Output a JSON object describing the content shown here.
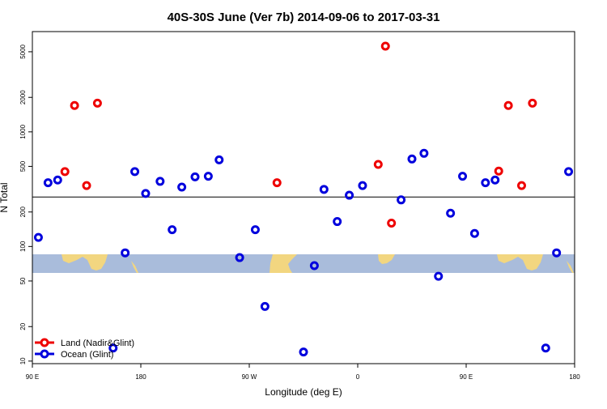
{
  "chart_data": {
    "type": "scatter",
    "title": "40S-30S June (Ver 7b)   2014-09-06 to 2017-03-31",
    "xlabel": "Longitude (deg E)",
    "ylabel": "N Total",
    "y_scale": "log",
    "xlim": [
      90,
      540
    ],
    "ylim": [
      9.5,
      7500
    ],
    "x_ticks": [
      {
        "value": 90,
        "label": "90 E"
      },
      {
        "value": 180,
        "label": "180"
      },
      {
        "value": 270,
        "label": "90 W"
      },
      {
        "value": 360,
        "label": "0"
      },
      {
        "value": 450,
        "label": "90 E"
      },
      {
        "value": 540,
        "label": "180"
      }
    ],
    "y_ticks": [
      {
        "value": 10,
        "label": "10"
      },
      {
        "value": 20,
        "label": "20"
      },
      {
        "value": 50,
        "label": "50"
      },
      {
        "value": 100,
        "label": "100"
      },
      {
        "value": 200,
        "label": "200"
      },
      {
        "value": 500,
        "label": "500"
      },
      {
        "value": 1000,
        "label": "1000"
      },
      {
        "value": 2000,
        "label": "2000"
      },
      {
        "value": 5000,
        "label": "5000"
      }
    ],
    "reference_line": 270,
    "latitude_band": {
      "top": 83,
      "bottom": 61,
      "color": "#a9bcdb",
      "land_color": "#f2d680"
    },
    "legend_position": "bottom-left",
    "series": [
      {
        "name": "Land (Nadir&Glint)",
        "color": "#ee0000",
        "points": [
          {
            "x": 117,
            "y": 450
          },
          {
            "x": 125,
            "y": 1700
          },
          {
            "x": 135,
            "y": 340
          },
          {
            "x": 144,
            "y": 1780
          },
          {
            "x": 293,
            "y": 360
          },
          {
            "x": 377,
            "y": 520
          },
          {
            "x": 383,
            "y": 5600
          },
          {
            "x": 388,
            "y": 160
          },
          {
            "x": 477,
            "y": 455
          },
          {
            "x": 485,
            "y": 1700
          },
          {
            "x": 496,
            "y": 340
          },
          {
            "x": 505,
            "y": 1780
          }
        ]
      },
      {
        "name": "Ocean (Glint)",
        "color": "#0000dd",
        "points": [
          {
            "x": 95,
            "y": 120
          },
          {
            "x": 103,
            "y": 360
          },
          {
            "x": 111,
            "y": 380
          },
          {
            "x": 157,
            "y": 13
          },
          {
            "x": 167,
            "y": 88
          },
          {
            "x": 175,
            "y": 450
          },
          {
            "x": 184,
            "y": 290
          },
          {
            "x": 196,
            "y": 370
          },
          {
            "x": 206,
            "y": 140
          },
          {
            "x": 214,
            "y": 330
          },
          {
            "x": 225,
            "y": 405
          },
          {
            "x": 236,
            "y": 410
          },
          {
            "x": 245,
            "y": 570
          },
          {
            "x": 262,
            "y": 80
          },
          {
            "x": 275,
            "y": 140
          },
          {
            "x": 283,
            "y": 30
          },
          {
            "x": 315,
            "y": 12
          },
          {
            "x": 324,
            "y": 68
          },
          {
            "x": 332,
            "y": 315
          },
          {
            "x": 343,
            "y": 165
          },
          {
            "x": 353,
            "y": 280
          },
          {
            "x": 364,
            "y": 340
          },
          {
            "x": 396,
            "y": 255
          },
          {
            "x": 405,
            "y": 580
          },
          {
            "x": 415,
            "y": 650
          },
          {
            "x": 427,
            "y": 55
          },
          {
            "x": 437,
            "y": 195
          },
          {
            "x": 447,
            "y": 410
          },
          {
            "x": 457,
            "y": 130
          },
          {
            "x": 466,
            "y": 360
          },
          {
            "x": 474,
            "y": 380
          },
          {
            "x": 516,
            "y": 13
          },
          {
            "x": 525,
            "y": 88
          },
          {
            "x": 535,
            "y": 450
          }
        ]
      }
    ]
  }
}
